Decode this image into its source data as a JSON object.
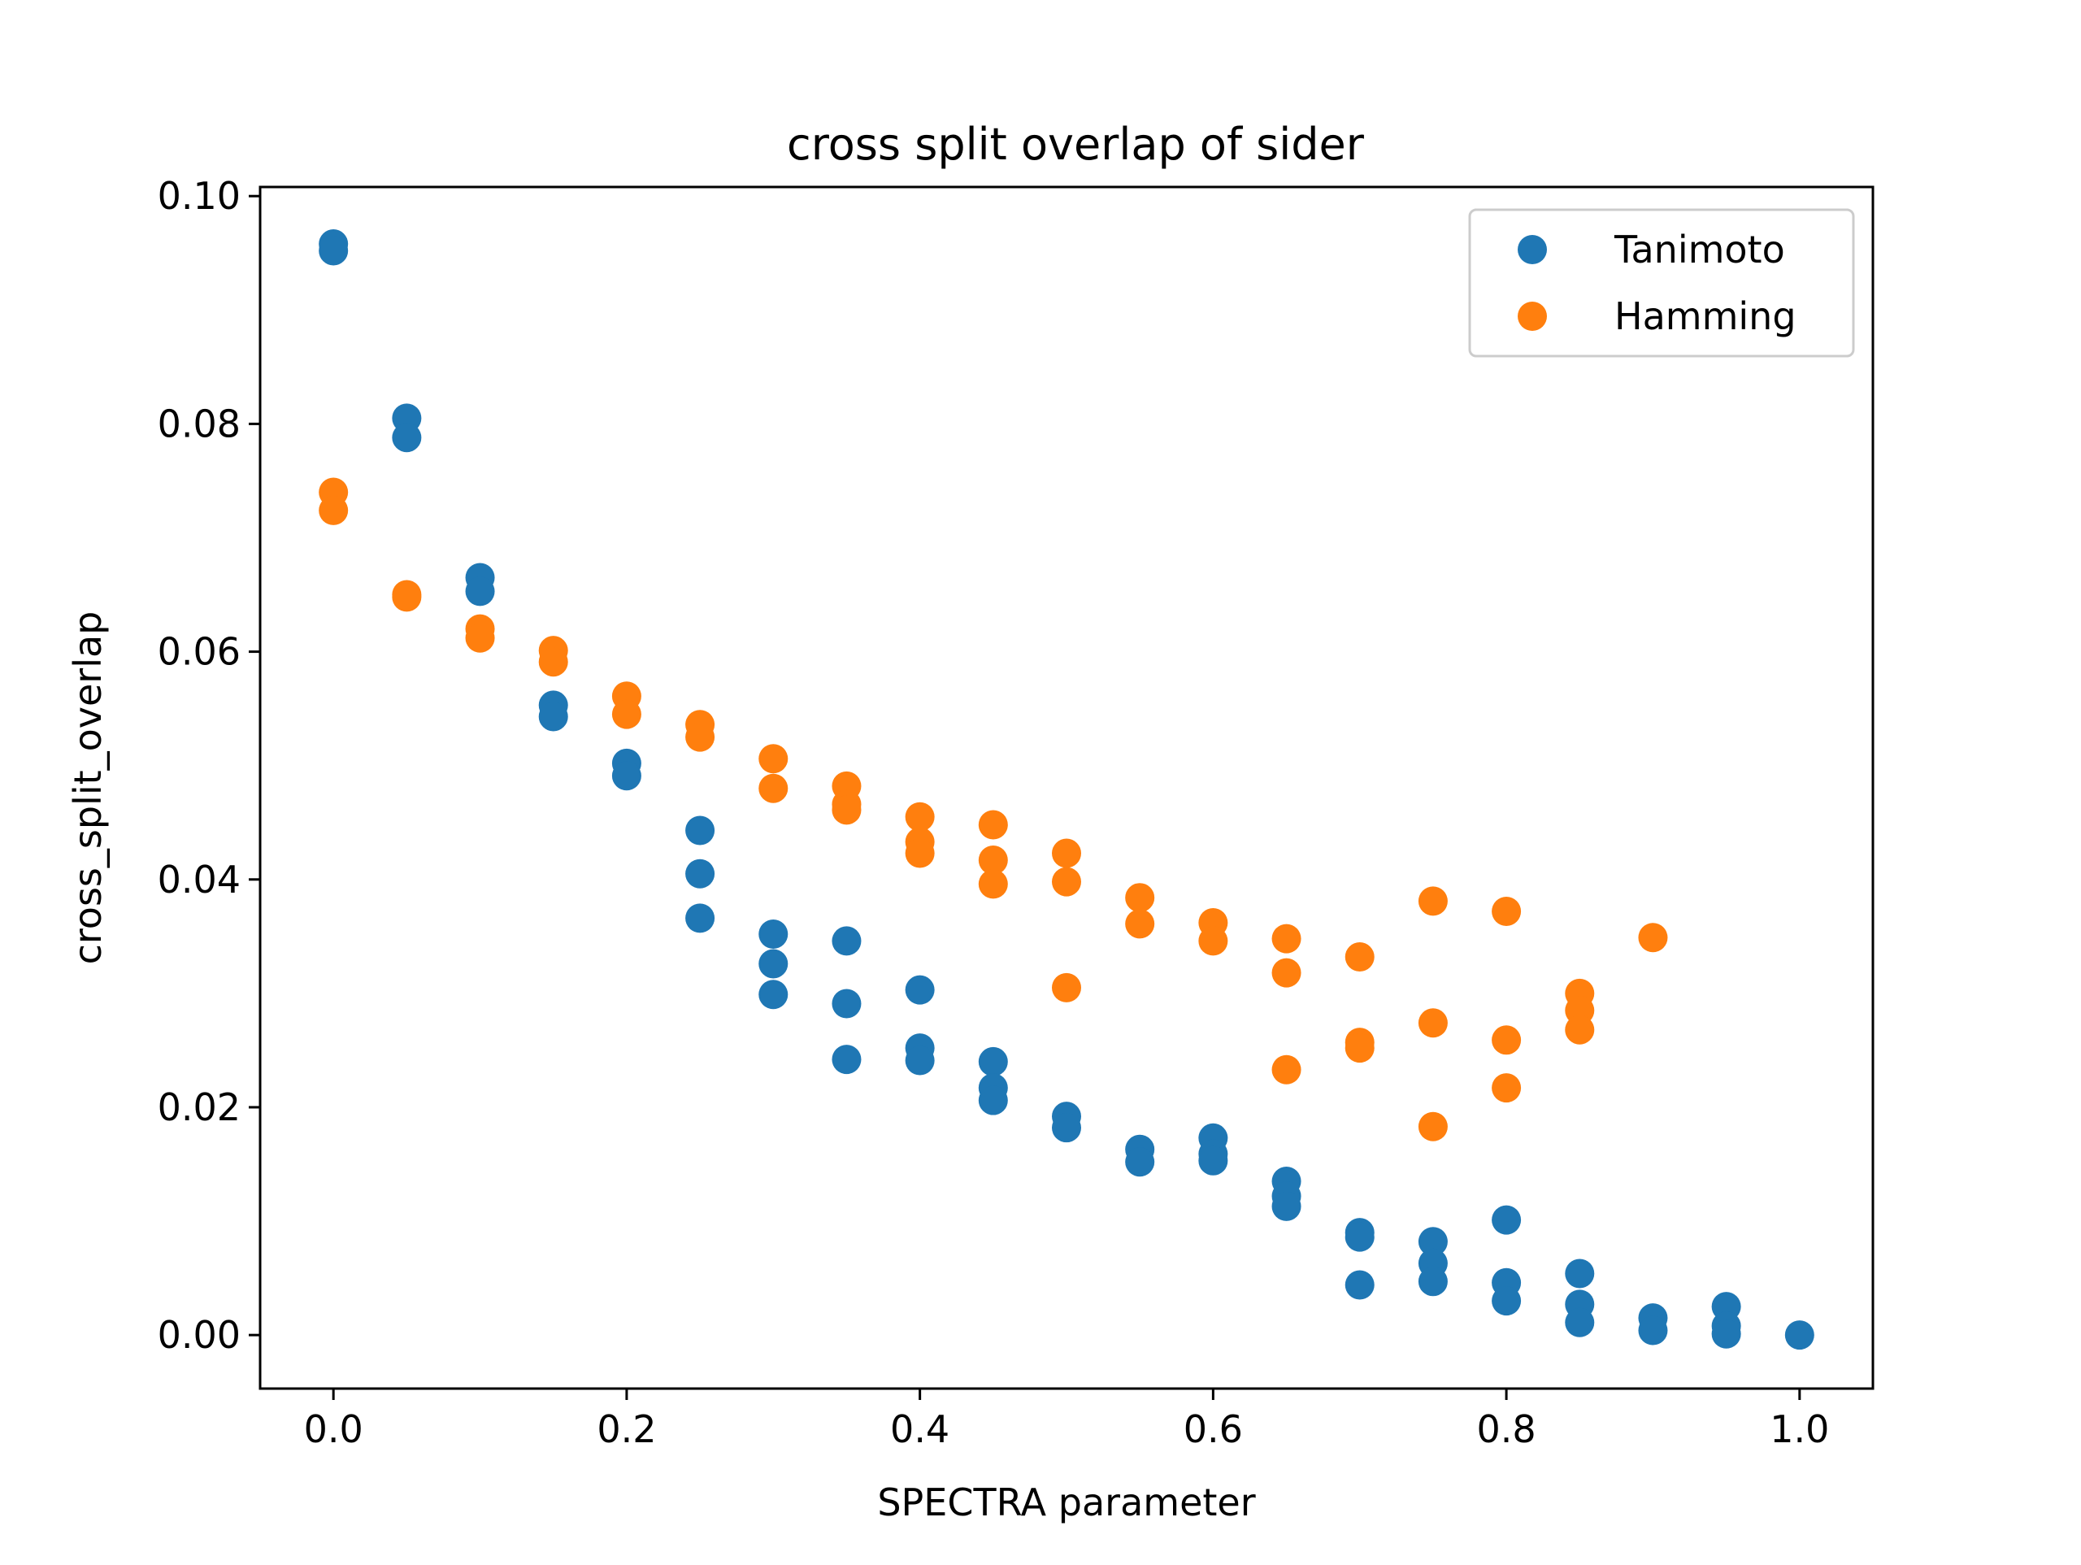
{
  "chart_data": {
    "type": "scatter",
    "title": "cross split overlap of sider",
    "xlabel": "SPECTRA parameter",
    "ylabel": "cross_split_overlap",
    "xlim": [
      -0.05,
      1.05
    ],
    "ylim": [
      -0.0047,
      0.1008
    ],
    "xticks": [
      "0.0",
      "0.2",
      "0.4",
      "0.6",
      "0.8",
      "1.0"
    ],
    "yticks": [
      "0.00",
      "0.02",
      "0.04",
      "0.06",
      "0.08",
      "0.10"
    ],
    "grid": false,
    "legend_position": "top-right",
    "series": [
      {
        "name": "Tanimoto",
        "color": "#1f77b4",
        "points": [
          [
            0.0,
            0.0958
          ],
          [
            0.0,
            0.0952
          ],
          [
            0.05,
            0.0805
          ],
          [
            0.05,
            0.0788
          ],
          [
            0.1,
            0.0665
          ],
          [
            0.1,
            0.0653
          ],
          [
            0.15,
            0.0553
          ],
          [
            0.15,
            0.0543
          ],
          [
            0.2,
            0.0502
          ],
          [
            0.2,
            0.0491
          ],
          [
            0.25,
            0.0443
          ],
          [
            0.25,
            0.0405
          ],
          [
            0.25,
            0.0366
          ],
          [
            0.3,
            0.0352
          ],
          [
            0.3,
            0.0326
          ],
          [
            0.3,
            0.0299
          ],
          [
            0.35,
            0.0346
          ],
          [
            0.35,
            0.0291
          ],
          [
            0.35,
            0.0242
          ],
          [
            0.4,
            0.0303
          ],
          [
            0.4,
            0.0252
          ],
          [
            0.4,
            0.0241
          ],
          [
            0.45,
            0.024
          ],
          [
            0.45,
            0.0217
          ],
          [
            0.45,
            0.0206
          ],
          [
            0.5,
            0.0192
          ],
          [
            0.5,
            0.0182
          ],
          [
            0.55,
            0.0163
          ],
          [
            0.55,
            0.0152
          ],
          [
            0.6,
            0.0173
          ],
          [
            0.6,
            0.0159
          ],
          [
            0.6,
            0.0153
          ],
          [
            0.65,
            0.0135
          ],
          [
            0.65,
            0.0122
          ],
          [
            0.65,
            0.0113
          ],
          [
            0.7,
            0.009
          ],
          [
            0.7,
            0.0086
          ],
          [
            0.7,
            0.0044
          ],
          [
            0.75,
            0.0082
          ],
          [
            0.75,
            0.0063
          ],
          [
            0.75,
            0.0047
          ],
          [
            0.8,
            0.0101
          ],
          [
            0.8,
            0.0046
          ],
          [
            0.8,
            0.003
          ],
          [
            0.85,
            0.0054
          ],
          [
            0.85,
            0.0027
          ],
          [
            0.85,
            0.0011
          ],
          [
            0.9,
            0.0015
          ],
          [
            0.9,
            0.0004
          ],
          [
            0.95,
            0.0025
          ],
          [
            0.95,
            0.0008
          ],
          [
            0.95,
            0.0001
          ],
          [
            1.0,
            0.0
          ]
        ]
      },
      {
        "name": "Hamming",
        "color": "#ff7f0e",
        "points": [
          [
            0.0,
            0.074
          ],
          [
            0.0,
            0.0724
          ],
          [
            0.05,
            0.065
          ],
          [
            0.05,
            0.0648
          ],
          [
            0.1,
            0.062
          ],
          [
            0.1,
            0.0612
          ],
          [
            0.15,
            0.0601
          ],
          [
            0.15,
            0.0591
          ],
          [
            0.2,
            0.0561
          ],
          [
            0.2,
            0.0545
          ],
          [
            0.25,
            0.0536
          ],
          [
            0.25,
            0.0525
          ],
          [
            0.3,
            0.0506
          ],
          [
            0.3,
            0.048
          ],
          [
            0.35,
            0.0482
          ],
          [
            0.35,
            0.0466
          ],
          [
            0.35,
            0.0461
          ],
          [
            0.4,
            0.0455
          ],
          [
            0.4,
            0.0433
          ],
          [
            0.4,
            0.0423
          ],
          [
            0.45,
            0.0448
          ],
          [
            0.45,
            0.0417
          ],
          [
            0.45,
            0.0396
          ],
          [
            0.5,
            0.0423
          ],
          [
            0.5,
            0.0398
          ],
          [
            0.5,
            0.0305
          ],
          [
            0.55,
            0.0384
          ],
          [
            0.55,
            0.0361
          ],
          [
            0.6,
            0.0362
          ],
          [
            0.6,
            0.0346
          ],
          [
            0.65,
            0.0348
          ],
          [
            0.65,
            0.0318
          ],
          [
            0.65,
            0.0233
          ],
          [
            0.7,
            0.0332
          ],
          [
            0.7,
            0.0257
          ],
          [
            0.7,
            0.0252
          ],
          [
            0.75,
            0.0381
          ],
          [
            0.75,
            0.0274
          ],
          [
            0.75,
            0.0183
          ],
          [
            0.8,
            0.0372
          ],
          [
            0.8,
            0.0259
          ],
          [
            0.8,
            0.0217
          ],
          [
            0.85,
            0.03
          ],
          [
            0.85,
            0.0285
          ],
          [
            0.85,
            0.0268
          ],
          [
            0.9,
            0.0349
          ]
        ]
      }
    ]
  }
}
